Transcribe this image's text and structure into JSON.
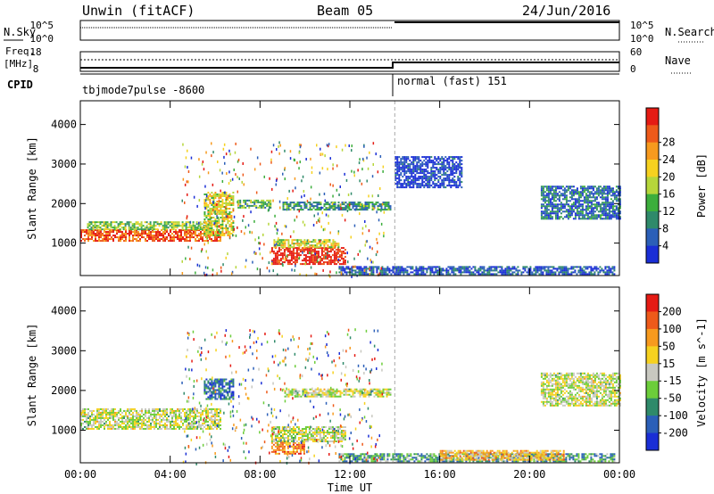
{
  "header": {
    "station": "Unwin (fitACF)",
    "beam": "Beam 05",
    "date": "24/Jun/2016"
  },
  "strip_labels": {
    "nsky": "N.Sky",
    "nsky_ticks": [
      "10^5",
      "10^0"
    ],
    "nsearch": "N.Search",
    "nsearch_ticks": [
      "10^5",
      "10^0"
    ],
    "freq": "Freq.",
    "freq_unit": "[MHz]",
    "freq_ticks": [
      "18",
      "8"
    ],
    "nave": "Nave",
    "nave_ticks": [
      "60",
      "0"
    ],
    "cpid": "CPID",
    "cpid_mode1": "tbjmode7pulse -8600",
    "cpid_mode2": "normal (fast) 151"
  },
  "chart_data": [
    {
      "type": "heatmap",
      "name": "power",
      "ylabel": "Slant Range [km]",
      "xlabel": "",
      "x_ticks": [
        "00:00",
        "04:00",
        "08:00",
        "12:00",
        "16:00",
        "20:00",
        "00:00"
      ],
      "xlim_hours": [
        0,
        24
      ],
      "ylim": [
        180,
        4600
      ],
      "y_ticks": [
        1000,
        2000,
        3000,
        4000
      ],
      "colorbar_label": "Power [dB]",
      "colorbar_ticks": [
        "4",
        "8",
        "12",
        "16",
        "20",
        "24",
        "28"
      ],
      "colorbar_colors": [
        "#1a2ed6",
        "#2b5fb8",
        "#2f8a6a",
        "#3cae3c",
        "#b6d63a",
        "#f6d11f",
        "#f79a1e",
        "#ee5a1a",
        "#e51b14"
      ],
      "mode_change_hour": 14.0,
      "echo_regions": [
        {
          "t0": 0.0,
          "t1": 6.2,
          "r0": 1050,
          "r1": 1350,
          "level": 0.85
        },
        {
          "t0": 0.3,
          "t1": 5.8,
          "r0": 1350,
          "r1": 1550,
          "level": 0.45
        },
        {
          "t0": 5.5,
          "t1": 6.8,
          "r0": 1200,
          "r1": 2300,
          "level": 0.55
        },
        {
          "t0": 7.0,
          "t1": 8.5,
          "r0": 1900,
          "r1": 2100,
          "level": 0.35
        },
        {
          "t0": 8.5,
          "t1": 11.8,
          "r0": 450,
          "r1": 900,
          "level": 0.95
        },
        {
          "t0": 8.6,
          "t1": 11.5,
          "r0": 900,
          "r1": 1100,
          "level": 0.55
        },
        {
          "t0": 9.0,
          "t1": 13.8,
          "r0": 1850,
          "r1": 2050,
          "level": 0.3
        },
        {
          "t0": 11.5,
          "t1": 23.8,
          "r0": 200,
          "r1": 420,
          "level": 0.15
        },
        {
          "t0": 20.5,
          "t1": 24.0,
          "r0": 1600,
          "r1": 2450,
          "level": 0.2
        },
        {
          "t0": 14.0,
          "t1": 17.0,
          "r0": 2400,
          "r1": 3200,
          "level": 0.08
        }
      ]
    },
    {
      "type": "heatmap",
      "name": "velocity",
      "ylabel": "Slant Range [km]",
      "xlabel": "Time UT",
      "x_ticks": [
        "00:00",
        "04:00",
        "08:00",
        "12:00",
        "16:00",
        "20:00",
        "00:00"
      ],
      "xlim_hours": [
        0,
        24
      ],
      "ylim": [
        180,
        4600
      ],
      "y_ticks": [
        1000,
        2000,
        3000,
        4000
      ],
      "colorbar_label": "Velocity [m s^-1]",
      "colorbar_ticks": [
        "200",
        "100",
        "50",
        "15",
        "-15",
        "-50",
        "-100",
        "-200"
      ],
      "colorbar_colors": [
        "#1a2ed6",
        "#2b5fb8",
        "#2f8a6a",
        "#6ccd3a",
        "#c8c8c0",
        "#f6d11f",
        "#f79a1e",
        "#ee5a1a",
        "#e51b14"
      ],
      "mode_change_hour": 14.0,
      "echo_regions": [
        {
          "t0": 0.0,
          "t1": 6.2,
          "r0": 1050,
          "r1": 1550,
          "level": 0.5
        },
        {
          "t0": 5.5,
          "t1": 6.8,
          "r0": 1800,
          "r1": 2300,
          "level": 0.2
        },
        {
          "t0": 8.5,
          "t1": 11.8,
          "r0": 700,
          "r1": 1100,
          "level": 0.5
        },
        {
          "t0": 8.5,
          "t1": 10.0,
          "r0": 400,
          "r1": 700,
          "level": 0.75
        },
        {
          "t0": 9.0,
          "t1": 13.8,
          "r0": 1850,
          "r1": 2050,
          "level": 0.5
        },
        {
          "t0": 11.5,
          "t1": 23.8,
          "r0": 200,
          "r1": 420,
          "level": 0.3
        },
        {
          "t0": 16.0,
          "t1": 21.5,
          "r0": 250,
          "r1": 500,
          "level": 0.65
        },
        {
          "t0": 20.5,
          "t1": 24.0,
          "r0": 1600,
          "r1": 2450,
          "level": 0.5
        }
      ]
    }
  ]
}
